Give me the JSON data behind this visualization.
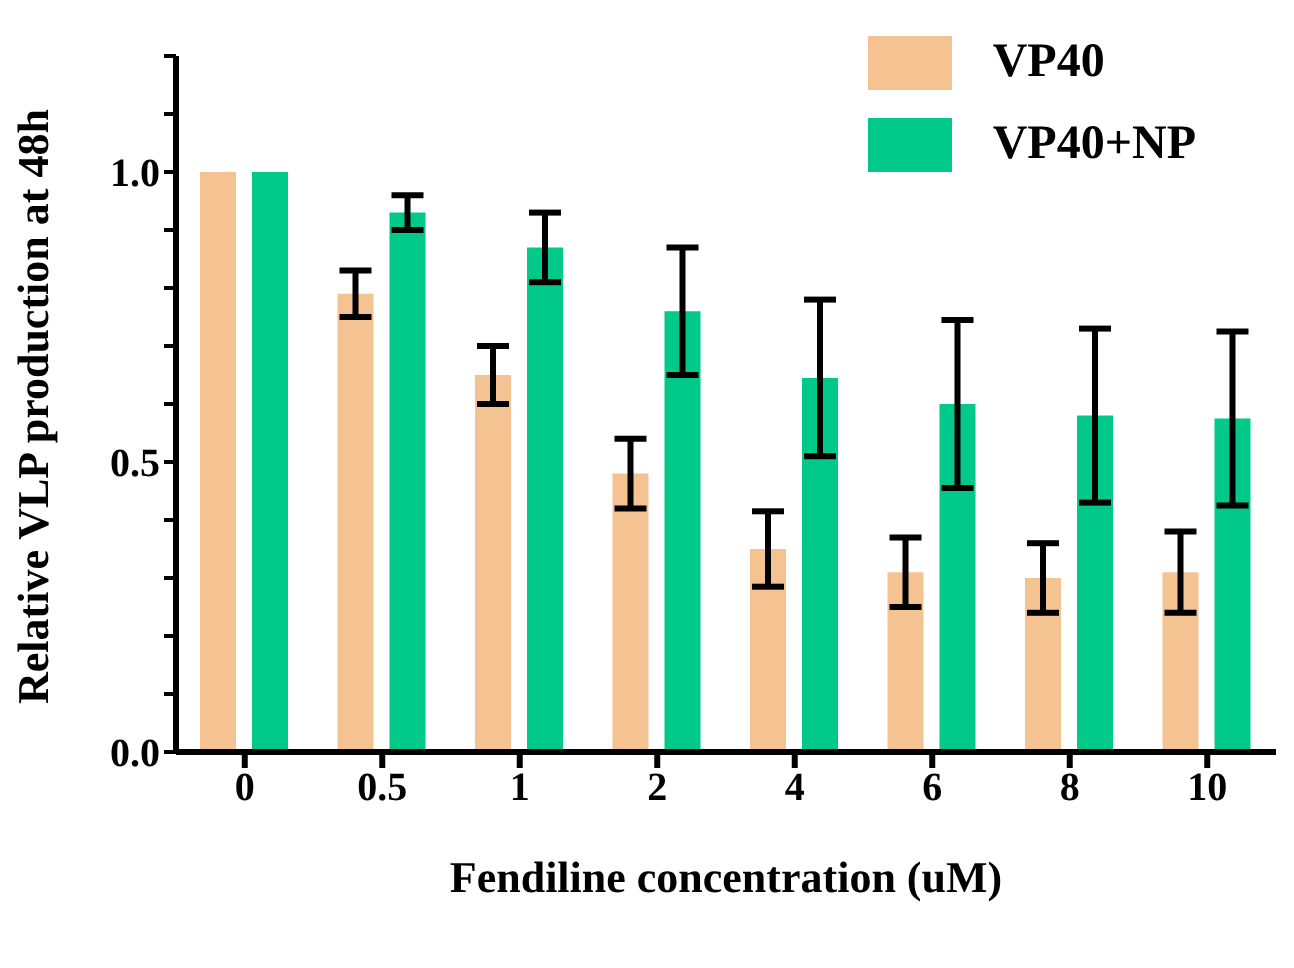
{
  "chart_data": {
    "type": "bar",
    "xlabel": "Fendiline concentration (uM)",
    "ylabel": "Relative VLP production at 48h",
    "categories": [
      "0",
      "0.5",
      "1",
      "2",
      "4",
      "6",
      "8",
      "10"
    ],
    "series": [
      {
        "name": "VP40",
        "color": "#f5c391",
        "values": [
          1.0,
          0.79,
          0.65,
          0.48,
          0.35,
          0.31,
          0.3,
          0.31
        ],
        "errors": [
          null,
          0.04,
          0.05,
          0.06,
          0.065,
          0.06,
          0.06,
          0.07
        ]
      },
      {
        "name": "VP40+NP",
        "color": "#00c98a",
        "values": [
          1.0,
          0.93,
          0.87,
          0.76,
          0.645,
          0.6,
          0.58,
          0.575
        ],
        "errors": [
          null,
          0.03,
          0.06,
          0.11,
          0.135,
          0.145,
          0.15,
          0.15
        ]
      }
    ],
    "ylim": [
      0,
      1.2
    ],
    "yticks": [
      {
        "value": 0,
        "label": "0.0"
      },
      {
        "value": 0.1,
        "label": null
      },
      {
        "value": 0.2,
        "label": null
      },
      {
        "value": 0.3,
        "label": null
      },
      {
        "value": 0.4,
        "label": null
      },
      {
        "value": 0.5,
        "label": "0.5"
      },
      {
        "value": 0.6,
        "label": null
      },
      {
        "value": 0.7,
        "label": null
      },
      {
        "value": 0.8,
        "label": null
      },
      {
        "value": 0.9,
        "label": null
      },
      {
        "value": 1.0,
        "label": "1.0"
      },
      {
        "value": 1.1,
        "label": null
      },
      {
        "value": 1.2,
        "label": null
      }
    ],
    "legend": "top right",
    "grid": false
  }
}
